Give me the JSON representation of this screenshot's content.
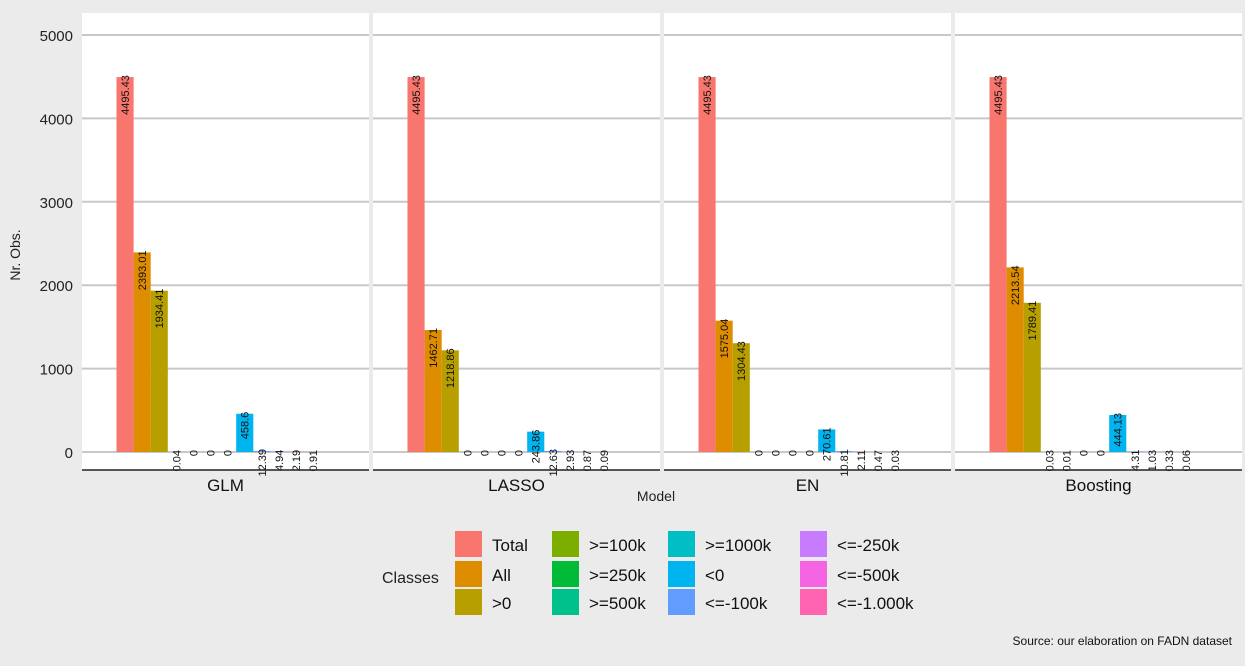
{
  "chart_data": {
    "type": "bar",
    "ylabel": "Nr. Obs.",
    "xlabel": "Model",
    "ylim": [
      0,
      5000
    ],
    "y_ticks": [
      "0",
      "1000",
      "2000",
      "3000",
      "4000",
      "5000"
    ],
    "grid": true,
    "panels": [
      "GLM",
      "LASSO",
      "EN",
      "Boosting"
    ],
    "series": [
      {
        "name": "Total",
        "color": "#F8766D",
        "labels": [
          "4495.43",
          "4495.43",
          "4495.43",
          "4495.43"
        ],
        "values": [
          4495.43,
          4495.43,
          4495.43,
          4495.43
        ]
      },
      {
        "name": "All",
        "color": "#DE8C00",
        "labels": [
          "2393.01",
          "1462.71",
          "1575.04",
          "2213.54"
        ],
        "values": [
          2393.01,
          1462.71,
          1575.04,
          2213.54
        ]
      },
      {
        "name": ">0",
        "color": "#B79F00",
        "labels": [
          "1934.41",
          "1218.86",
          "1304.43",
          "1789.41"
        ],
        "values": [
          1934.41,
          1218.86,
          1304.43,
          1789.41
        ]
      },
      {
        "name": ">=100k",
        "color": "#7CAE00",
        "labels": [
          "0.04",
          "0",
          "0",
          "0.03"
        ],
        "values": [
          0.04,
          0,
          0,
          0.03
        ]
      },
      {
        "name": ">=250k",
        "color": "#00BA38",
        "labels": [
          "0",
          "0",
          "0",
          "0.01"
        ],
        "values": [
          0,
          0,
          0,
          0.01
        ]
      },
      {
        "name": ">=500k",
        "color": "#00C08B",
        "labels": [
          "0",
          "0",
          "0",
          "0"
        ],
        "values": [
          0,
          0,
          0,
          0
        ]
      },
      {
        "name": ">=1000k",
        "color": "#00BFC4",
        "labels": [
          "0",
          "0",
          "0",
          "0"
        ],
        "values": [
          0,
          0,
          0,
          0
        ]
      },
      {
        "name": "<0",
        "color": "#00B4F0",
        "labels": [
          "458.6",
          "243.86",
          "270.61",
          "444.13"
        ],
        "values": [
          458.6,
          243.86,
          270.61,
          444.13
        ]
      },
      {
        "name": "<=-100k",
        "color": "#619CFF",
        "labels": [
          "12.39",
          "12.63",
          "10.81",
          "4.31"
        ],
        "values": [
          12.39,
          12.63,
          10.81,
          4.31
        ]
      },
      {
        "name": "<=-250k",
        "color": "#C77CFF",
        "labels": [
          "4.94",
          "2.93",
          "2.11",
          "1.03"
        ],
        "values": [
          4.94,
          2.93,
          2.11,
          1.03
        ]
      },
      {
        "name": "<=-500k",
        "color": "#F564E3",
        "labels": [
          "2.19",
          "0.87",
          "0.47",
          "0.33"
        ],
        "values": [
          2.19,
          0.87,
          0.47,
          0.33
        ]
      },
      {
        "name": "<=-1.000k",
        "color": "#FF64B0",
        "labels": [
          "0.91",
          "0.09",
          "0.03",
          "0.06"
        ],
        "values": [
          0.91,
          0.09,
          0.03,
          0.06
        ]
      }
    ],
    "legend": {
      "title": "Classes",
      "position": "bottom"
    },
    "caption": "Source: our elaboration on FADN dataset"
  }
}
